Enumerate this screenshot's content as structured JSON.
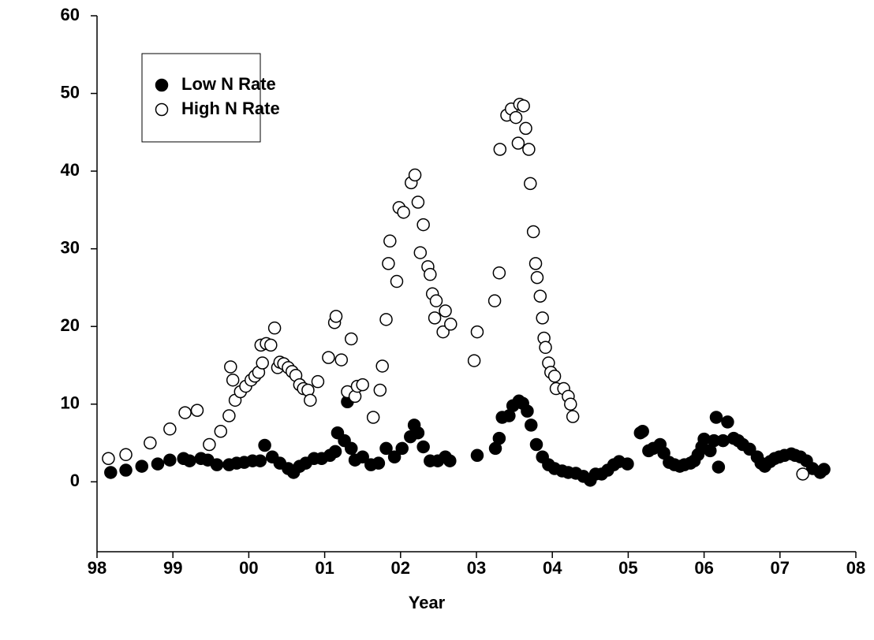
{
  "chart_data": {
    "type": "scatter",
    "x_label": "Year",
    "xlim": [
      1998,
      2008
    ],
    "xticks": [
      {
        "value": 1998,
        "label": "98"
      },
      {
        "value": 1999,
        "label": "99"
      },
      {
        "value": 2000,
        "label": "00"
      },
      {
        "value": 2001,
        "label": "01"
      },
      {
        "value": 2002,
        "label": "02"
      },
      {
        "value": 2003,
        "label": "03"
      },
      {
        "value": 2004,
        "label": "04"
      },
      {
        "value": 2005,
        "label": "05"
      },
      {
        "value": 2006,
        "label": "06"
      },
      {
        "value": 2007,
        "label": "07"
      },
      {
        "value": 2008,
        "label": "08"
      }
    ],
    "ylim": [
      -9,
      60
    ],
    "yticks": [
      0,
      10,
      20,
      30,
      40,
      50,
      60
    ],
    "legend": "upper-left",
    "series": [
      {
        "name": "Low N Rate",
        "color": "#000000",
        "marker": "filled",
        "x": [
          1998.18,
          1998.38,
          1998.59,
          1998.8,
          1998.96,
          1999.14,
          1999.22,
          1999.37,
          1999.46,
          1999.58,
          1999.74,
          1999.84,
          1999.94,
          2000.05,
          2000.15,
          2000.21,
          2000.31,
          2000.41,
          2000.52,
          2000.59,
          2000.67,
          2000.75,
          2000.86,
          2000.96,
          2001.07,
          2001.14,
          2001.17,
          2001.26,
          2001.3,
          2001.35,
          2001.4,
          2001.5,
          2001.61,
          2001.71,
          2001.81,
          2001.92,
          2002.02,
          2002.13,
          2002.18,
          2002.23,
          2002.3,
          2002.39,
          2002.49,
          2002.59,
          2002.65,
          2003.01,
          2003.25,
          2003.3,
          2003.34,
          2003.43,
          2003.48,
          2003.56,
          2003.61,
          2003.67,
          2003.72,
          2003.79,
          2003.87,
          2003.95,
          2004.03,
          2004.13,
          2004.21,
          2004.31,
          2004.41,
          2004.5,
          2004.57,
          2004.65,
          2004.73,
          2004.81,
          2004.88,
          2004.99,
          2005.16,
          2005.19,
          2005.27,
          2005.33,
          2005.42,
          2005.47,
          2005.54,
          2005.61,
          2005.68,
          2005.74,
          2005.82,
          2005.87,
          2005.92,
          2005.97,
          2006.0,
          2006.08,
          2006.13,
          2006.16,
          2006.19,
          2006.25,
          2006.31,
          2006.39,
          2006.45,
          2006.51,
          2006.6,
          2006.7,
          2006.75,
          2006.8,
          2006.87,
          2006.93,
          2006.99,
          2007.06,
          2007.15,
          2007.2,
          2007.27,
          2007.35,
          2007.43,
          2007.53,
          2007.58
        ],
        "values": [
          1.2,
          1.5,
          2.0,
          2.3,
          2.8,
          3.0,
          2.7,
          3.0,
          2.8,
          2.2,
          2.2,
          2.4,
          2.5,
          2.7,
          2.7,
          4.7,
          3.2,
          2.4,
          1.7,
          1.2,
          2.0,
          2.4,
          3.0,
          3.0,
          3.4,
          3.9,
          6.3,
          5.3,
          10.3,
          4.3,
          2.8,
          3.2,
          2.2,
          2.4,
          4.3,
          3.2,
          4.3,
          5.8,
          7.3,
          6.3,
          4.5,
          2.7,
          2.7,
          3.2,
          2.7,
          3.4,
          4.3,
          5.6,
          8.3,
          8.5,
          9.8,
          10.4,
          10.1,
          9.1,
          7.3,
          4.8,
          3.2,
          2.2,
          1.7,
          1.4,
          1.2,
          1.1,
          0.7,
          0.2,
          1.0,
          1.0,
          1.5,
          2.2,
          2.6,
          2.3,
          6.3,
          6.5,
          4.0,
          4.3,
          4.8,
          3.7,
          2.5,
          2.2,
          2.0,
          2.2,
          2.4,
          2.7,
          3.5,
          4.5,
          5.5,
          4.0,
          5.3,
          8.3,
          1.9,
          5.3,
          7.7,
          5.6,
          5.3,
          4.8,
          4.2,
          3.2,
          2.4,
          2.0,
          2.6,
          3.0,
          3.2,
          3.4,
          3.6,
          3.4,
          3.2,
          2.7,
          1.7,
          1.2,
          1.6
        ]
      },
      {
        "name": "High N Rate",
        "color": "#000000",
        "marker": "open",
        "x": [
          1998.15,
          1998.38,
          1998.7,
          1998.96,
          1999.16,
          1999.32,
          1999.48,
          1999.63,
          1999.74,
          1999.76,
          1999.79,
          1999.82,
          1999.89,
          1999.96,
          2000.03,
          2000.08,
          2000.13,
          2000.18,
          2000.16,
          2000.23,
          2000.29,
          2000.34,
          2000.38,
          2000.41,
          2000.46,
          2000.52,
          2000.57,
          2000.62,
          2000.67,
          2000.72,
          2000.78,
          2000.81,
          2000.91,
          2001.05,
          2001.13,
          2001.15,
          2001.22,
          2001.3,
          2001.35,
          2001.4,
          2001.43,
          2001.5,
          2001.64,
          2001.73,
          2001.76,
          2001.81,
          2001.84,
          2001.86,
          2001.95,
          2001.98,
          2002.04,
          2002.14,
          2002.19,
          2002.23,
          2002.26,
          2002.3,
          2002.36,
          2002.39,
          2002.42,
          2002.45,
          2002.47,
          2002.56,
          2002.59,
          2002.66,
          2002.97,
          2003.01,
          2003.24,
          2003.3,
          2003.31,
          2003.4,
          2003.46,
          2003.52,
          2003.55,
          2003.57,
          2003.62,
          2003.65,
          2003.69,
          2003.71,
          2003.75,
          2003.78,
          2003.8,
          2003.84,
          2003.87,
          2003.89,
          2003.91,
          2003.95,
          2003.98,
          2004.03,
          2004.05,
          2004.15,
          2004.21,
          2004.24,
          2004.27,
          2007.3
        ],
        "values": [
          3.0,
          3.5,
          5.0,
          6.8,
          8.9,
          9.2,
          4.8,
          6.5,
          8.5,
          14.8,
          13.1,
          10.5,
          11.6,
          12.3,
          13.1,
          13.6,
          14.1,
          15.3,
          17.6,
          17.8,
          17.6,
          19.8,
          14.7,
          15.4,
          15.2,
          14.7,
          14.2,
          13.7,
          12.5,
          12.0,
          11.8,
          10.5,
          12.9,
          16.0,
          20.5,
          21.3,
          15.7,
          11.6,
          18.4,
          11.0,
          12.3,
          12.5,
          8.3,
          11.8,
          14.9,
          20.9,
          28.1,
          31.0,
          25.8,
          35.3,
          34.7,
          38.5,
          39.5,
          36.0,
          29.5,
          33.1,
          27.7,
          26.7,
          24.2,
          21.1,
          23.3,
          19.3,
          22.0,
          20.3,
          15.6,
          19.3,
          23.3,
          26.9,
          42.8,
          47.2,
          48.0,
          46.9,
          43.6,
          48.6,
          48.4,
          45.5,
          42.8,
          38.4,
          32.2,
          28.1,
          26.3,
          23.9,
          21.1,
          18.5,
          17.3,
          15.3,
          14.1,
          13.6,
          12.0,
          12.0,
          11.0,
          10.0,
          8.4,
          1.0
        ]
      }
    ]
  }
}
